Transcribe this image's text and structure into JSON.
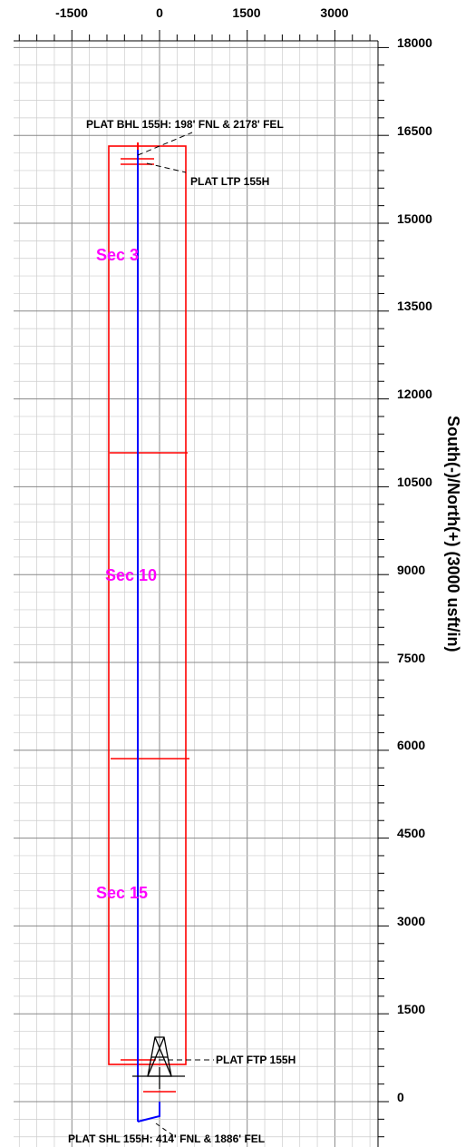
{
  "axes": {
    "x_ticks": [
      "-1500",
      "0",
      "1500",
      "3000"
    ],
    "y_ticks": [
      "18000",
      "16500",
      "15000",
      "13500",
      "12000",
      "10500",
      "9000",
      "7500",
      "6000",
      "4500",
      "3000",
      "1500",
      "0"
    ],
    "y_title": "South(-)/North(+) (3000 usft/in)"
  },
  "annotations": {
    "bhl": "PLAT BHL 155H: 198' FNL & 2178' FEL",
    "ltp": "PLAT LTP 155H",
    "ftp": "PLAT FTP 155H",
    "shl": "PLAT SHL 155H: 414' FNL & 1886' FEL"
  },
  "sections": {
    "sec3": "Sec 3",
    "sec10": "Sec 10",
    "sec15": "Sec 15"
  },
  "colors": {
    "lease_outline": "#ff0000",
    "wellbore": "#0000ff",
    "section_label": "#ff00ff",
    "grid_major": "#888888",
    "grid_minor": "#cccccc"
  },
  "well_plan": {
    "lease_west_x": -850,
    "lease_east_x": 500,
    "lease_north_y": 16250,
    "lease_south_y": 400,
    "section_lines_y": [
      10950,
      5650
    ],
    "wellbore_x": -380,
    "wellbore_top_y": 16300,
    "shl_x": 0,
    "shl_y": 0
  }
}
